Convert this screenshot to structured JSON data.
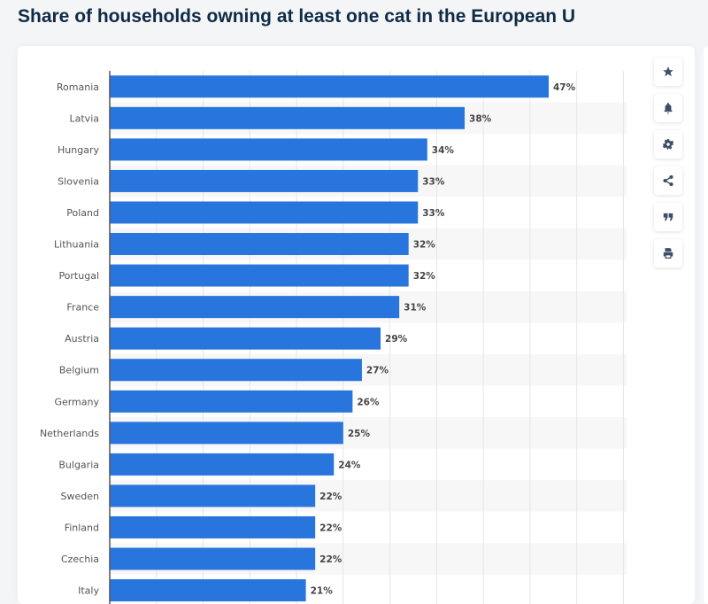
{
  "header": {
    "title": "Share of households owning at least one cat in the European U"
  },
  "toolbar": {
    "icons": [
      "star-icon",
      "bell-icon",
      "gear-icon",
      "share-icon",
      "quote-icon",
      "print-icon"
    ]
  },
  "chart_data": {
    "type": "bar",
    "orientation": "horizontal",
    "categories": [
      "Romania",
      "Latvia",
      "Hungary",
      "Slovenia",
      "Poland",
      "Lithuania",
      "Portugal",
      "France",
      "Austria",
      "Belgium",
      "Germany",
      "Netherlands",
      "Bulgaria",
      "Sweden",
      "Finland",
      "Czechia",
      "Italy"
    ],
    "values": [
      47,
      38,
      34,
      33,
      33,
      32,
      32,
      31,
      29,
      27,
      26,
      25,
      24,
      22,
      22,
      22,
      21
    ],
    "data_labels": [
      "47%",
      "38%",
      "34%",
      "33%",
      "33%",
      "32%",
      "32%",
      "31%",
      "29%",
      "27%",
      "26%",
      "25%",
      "24%",
      "22%",
      "22%",
      "22%",
      "21%"
    ],
    "title": "Share of households owning at least one cat in the European U",
    "xlim": [
      0,
      55
    ],
    "grid": true,
    "bar_color": "#2876dd",
    "label_color": "#444444"
  }
}
